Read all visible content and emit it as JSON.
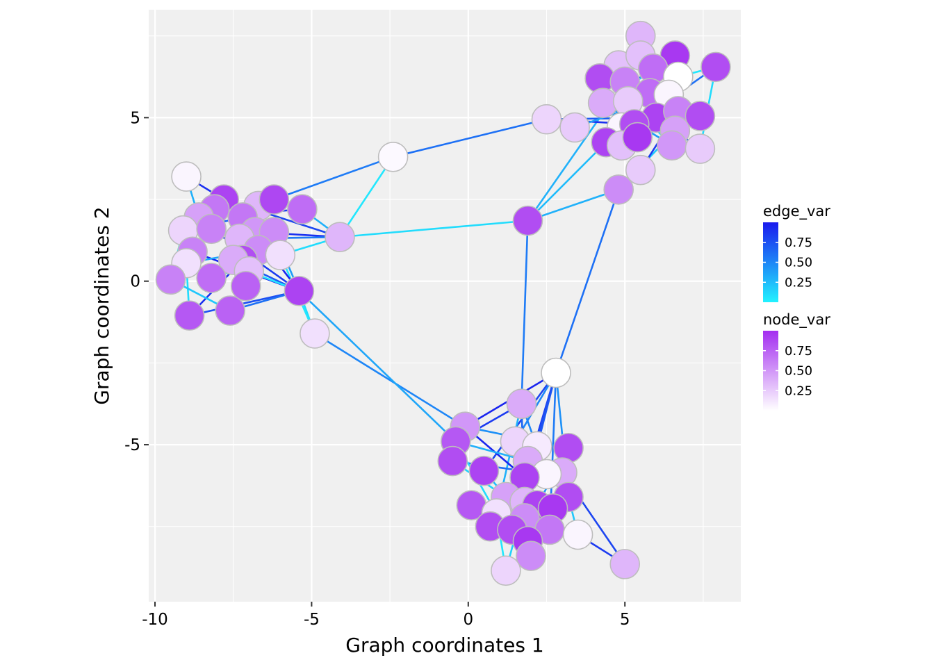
{
  "chart_data": {
    "type": "network",
    "xlabel": "Graph coordinates 1",
    "ylabel": "Graph coordinates 2",
    "xlim": [
      -10.2,
      8.7
    ],
    "ylim": [
      -9.8,
      8.3
    ],
    "x_ticks": [
      -10,
      -5,
      0,
      5
    ],
    "x_tick_labels": [
      "-10",
      "-5",
      "0",
      "5"
    ],
    "y_ticks": [
      -5,
      0,
      5
    ],
    "y_tick_labels": [
      "-5",
      "0",
      "5"
    ],
    "grid": true,
    "edge_color_low": "#22f2ff",
    "edge_color_high": "#1a1aee",
    "node_color_low": "#ffffff",
    "node_color_high": "#a32ef0",
    "node_stroke": "#bdbdbd",
    "legend": [
      {
        "title": "edge_var",
        "labels": [
          "0.75",
          "0.50",
          "0.25"
        ],
        "values": [
          0.75,
          0.5,
          0.25
        ]
      },
      {
        "title": "node_var",
        "labels": [
          "0.75",
          "0.50",
          "0.25"
        ],
        "values": [
          0.75,
          0.5,
          0.25
        ]
      }
    ],
    "nodes": [
      {
        "x": -9.0,
        "y": 3.2,
        "v": 0.05
      },
      {
        "x": -7.8,
        "y": 2.5,
        "v": 0.9
      },
      {
        "x": -6.7,
        "y": 2.3,
        "v": 0.35
      },
      {
        "x": -6.2,
        "y": 2.5,
        "v": 0.88
      },
      {
        "x": -5.3,
        "y": 2.2,
        "v": 0.7
      },
      {
        "x": -8.1,
        "y": 2.2,
        "v": 0.65
      },
      {
        "x": -8.6,
        "y": 1.95,
        "v": 0.45
      },
      {
        "x": -7.2,
        "y": 1.95,
        "v": 0.65
      },
      {
        "x": -9.1,
        "y": 1.55,
        "v": 0.2
      },
      {
        "x": -8.2,
        "y": 1.6,
        "v": 0.6
      },
      {
        "x": -6.8,
        "y": 1.5,
        "v": 0.5
      },
      {
        "x": -6.2,
        "y": 1.5,
        "v": 0.55
      },
      {
        "x": -4.1,
        "y": 1.35,
        "v": 0.35
      },
      {
        "x": -7.3,
        "y": 1.3,
        "v": 0.35
      },
      {
        "x": -8.8,
        "y": 0.9,
        "v": 0.6
      },
      {
        "x": -6.7,
        "y": 0.95,
        "v": 0.55
      },
      {
        "x": -6.0,
        "y": 0.8,
        "v": 0.15
      },
      {
        "x": -7.2,
        "y": 0.65,
        "v": 0.85
      },
      {
        "x": -7.5,
        "y": 0.65,
        "v": 0.4
      },
      {
        "x": -9.0,
        "y": 0.55,
        "v": 0.15
      },
      {
        "x": -7.0,
        "y": 0.3,
        "v": 0.3
      },
      {
        "x": -8.2,
        "y": 0.1,
        "v": 0.7
      },
      {
        "x": -9.5,
        "y": 0.05,
        "v": 0.6
      },
      {
        "x": -7.1,
        "y": -0.15,
        "v": 0.75
      },
      {
        "x": -5.4,
        "y": -0.3,
        "v": 0.9
      },
      {
        "x": -8.9,
        "y": -1.05,
        "v": 0.8
      },
      {
        "x": -7.6,
        "y": -0.9,
        "v": 0.75
      },
      {
        "x": -4.9,
        "y": -1.6,
        "v": 0.15
      },
      {
        "x": -2.4,
        "y": 3.8,
        "v": 0.03
      },
      {
        "x": 1.9,
        "y": 1.85,
        "v": 0.85
      },
      {
        "x": 5.5,
        "y": 7.5,
        "v": 0.35
      },
      {
        "x": 6.6,
        "y": 6.9,
        "v": 0.95
      },
      {
        "x": 4.8,
        "y": 6.6,
        "v": 0.3
      },
      {
        "x": 5.5,
        "y": 6.9,
        "v": 0.3
      },
      {
        "x": 5.9,
        "y": 6.5,
        "v": 0.7
      },
      {
        "x": 7.9,
        "y": 6.55,
        "v": 0.85
      },
      {
        "x": 6.7,
        "y": 6.25,
        "v": 0.0
      },
      {
        "x": 4.2,
        "y": 6.2,
        "v": 0.85
      },
      {
        "x": 5.0,
        "y": 6.1,
        "v": 0.6
      },
      {
        "x": 5.8,
        "y": 5.75,
        "v": 0.7
      },
      {
        "x": 6.4,
        "y": 5.7,
        "v": 0.05
      },
      {
        "x": 4.3,
        "y": 5.45,
        "v": 0.4
      },
      {
        "x": 5.1,
        "y": 5.5,
        "v": 0.25
      },
      {
        "x": 6.0,
        "y": 5.0,
        "v": 0.9
      },
      {
        "x": 6.7,
        "y": 5.2,
        "v": 0.6
      },
      {
        "x": 7.4,
        "y": 5.05,
        "v": 0.85
      },
      {
        "x": 2.5,
        "y": 4.95,
        "v": 0.2
      },
      {
        "x": 3.4,
        "y": 4.7,
        "v": 0.25
      },
      {
        "x": 4.9,
        "y": 4.7,
        "v": 0.05
      },
      {
        "x": 5.3,
        "y": 4.8,
        "v": 0.85
      },
      {
        "x": 6.6,
        "y": 4.6,
        "v": 0.45
      },
      {
        "x": 4.4,
        "y": 4.25,
        "v": 0.9
      },
      {
        "x": 4.9,
        "y": 4.15,
        "v": 0.3
      },
      {
        "x": 5.4,
        "y": 4.4,
        "v": 0.95
      },
      {
        "x": 6.5,
        "y": 4.15,
        "v": 0.5
      },
      {
        "x": 7.4,
        "y": 4.05,
        "v": 0.25
      },
      {
        "x": 5.5,
        "y": 3.4,
        "v": 0.25
      },
      {
        "x": 4.8,
        "y": 2.8,
        "v": 0.55
      },
      {
        "x": 2.8,
        "y": -2.8,
        "v": 0.0
      },
      {
        "x": 1.7,
        "y": -3.75,
        "v": 0.4
      },
      {
        "x": -0.1,
        "y": -4.45,
        "v": 0.5
      },
      {
        "x": -0.4,
        "y": -4.9,
        "v": 0.8
      },
      {
        "x": 1.5,
        "y": -4.9,
        "v": 0.2
      },
      {
        "x": 2.2,
        "y": -5.05,
        "v": 0.1
      },
      {
        "x": 3.2,
        "y": -5.1,
        "v": 0.85
      },
      {
        "x": -0.5,
        "y": -5.5,
        "v": 0.85
      },
      {
        "x": 1.9,
        "y": -5.5,
        "v": 0.4
      },
      {
        "x": 0.5,
        "y": -5.8,
        "v": 0.9
      },
      {
        "x": 3.0,
        "y": -5.85,
        "v": 0.4
      },
      {
        "x": 2.5,
        "y": -5.9,
        "v": 0.05
      },
      {
        "x": 1.8,
        "y": -6.0,
        "v": 0.9
      },
      {
        "x": 1.2,
        "y": -6.6,
        "v": 0.45
      },
      {
        "x": 3.2,
        "y": -6.6,
        "v": 0.85
      },
      {
        "x": 0.1,
        "y": -6.85,
        "v": 0.8
      },
      {
        "x": 1.8,
        "y": -6.75,
        "v": 0.35
      },
      {
        "x": 2.2,
        "y": -6.85,
        "v": 0.9
      },
      {
        "x": 2.7,
        "y": -6.95,
        "v": 0.95
      },
      {
        "x": 0.9,
        "y": -7.1,
        "v": 0.15
      },
      {
        "x": 1.8,
        "y": -7.25,
        "v": 0.55
      },
      {
        "x": 0.7,
        "y": -7.5,
        "v": 0.85
      },
      {
        "x": 1.4,
        "y": -7.6,
        "v": 0.85
      },
      {
        "x": 2.6,
        "y": -7.6,
        "v": 0.65
      },
      {
        "x": 3.5,
        "y": -7.75,
        "v": 0.05
      },
      {
        "x": 1.9,
        "y": -7.95,
        "v": 0.95
      },
      {
        "x": 2.0,
        "y": -8.4,
        "v": 0.55
      },
      {
        "x": 5.0,
        "y": -8.65,
        "v": 0.35
      },
      {
        "x": 1.2,
        "y": -8.85,
        "v": 0.2
      }
    ],
    "edges": [
      {
        "x1": -2.4,
        "y1": 3.8,
        "x2": 2.5,
        "y2": 4.95,
        "v": 0.6
      },
      {
        "x1": -2.4,
        "y1": 3.8,
        "x2": -6.2,
        "y2": 2.5,
        "v": 0.55
      },
      {
        "x1": -2.4,
        "y1": 3.8,
        "x2": -4.1,
        "y2": 1.35,
        "v": 0.05
      },
      {
        "x1": -4.1,
        "y1": 1.35,
        "x2": 1.9,
        "y2": 1.85,
        "v": 0.1
      },
      {
        "x1": 1.9,
        "y1": 1.85,
        "x2": 4.8,
        "y2": 2.8,
        "v": 0.3
      },
      {
        "x1": 1.9,
        "y1": 1.85,
        "x2": 4.4,
        "y2": 4.25,
        "v": 0.25
      },
      {
        "x1": 1.9,
        "y1": 1.85,
        "x2": 5.0,
        "y2": 6.1,
        "v": 0.3
      },
      {
        "x1": 1.9,
        "y1": 1.85,
        "x2": 1.7,
        "y2": -3.75,
        "v": 0.55
      },
      {
        "x1": 4.8,
        "y1": 2.8,
        "x2": 2.8,
        "y2": -2.8,
        "v": 0.6
      },
      {
        "x1": -4.9,
        "y1": -1.6,
        "x2": -0.1,
        "y2": -4.45,
        "v": 0.5
      },
      {
        "x1": -5.4,
        "y1": -0.3,
        "x2": -0.4,
        "y2": -4.9,
        "v": 0.35
      },
      {
        "x1": -5.4,
        "y1": -0.3,
        "x2": -4.9,
        "y2": -1.6,
        "v": 0.1
      },
      {
        "x1": -6.0,
        "y1": 0.8,
        "x2": -4.9,
        "y2": -1.6,
        "v": 0.05
      },
      {
        "x1": 2.5,
        "y1": 4.95,
        "x2": 6.0,
        "y2": 5.0,
        "v": 0.7
      },
      {
        "x1": 2.5,
        "y1": 4.95,
        "x2": 5.3,
        "y2": 4.8,
        "v": 0.9
      },
      {
        "x1": 3.4,
        "y1": 4.7,
        "x2": 6.4,
        "y2": 5.7,
        "v": 0.4
      },
      {
        "x1": 4.2,
        "y1": 6.2,
        "x2": 6.7,
        "y2": 6.25,
        "v": 0.8
      },
      {
        "x1": 4.3,
        "y1": 5.45,
        "x2": 6.6,
        "y2": 6.9,
        "v": 0.2
      },
      {
        "x1": 4.4,
        "y1": 4.25,
        "x2": 6.6,
        "y2": 6.9,
        "v": 0.9
      },
      {
        "x1": 5.3,
        "y1": 4.8,
        "x2": 7.9,
        "y2": 6.55,
        "v": 0.6
      },
      {
        "x1": 6.7,
        "y1": 6.25,
        "x2": 7.9,
        "y2": 6.55,
        "v": 0.05
      },
      {
        "x1": 7.9,
        "y1": 6.55,
        "x2": 7.4,
        "y2": 4.05,
        "v": 0.1
      },
      {
        "x1": 7.4,
        "y1": 4.05,
        "x2": 6.0,
        "y2": 5.0,
        "v": 0.7
      },
      {
        "x1": 4.8,
        "y1": 2.8,
        "x2": 6.6,
        "y2": 4.6,
        "v": 0.2
      },
      {
        "x1": 5.5,
        "y1": 3.4,
        "x2": 6.7,
        "y2": 5.2,
        "v": 0.85
      },
      {
        "x1": 4.9,
        "y1": 4.15,
        "x2": 6.0,
        "y2": 5.0,
        "v": 0.05
      },
      {
        "x1": 5.4,
        "y1": 4.4,
        "x2": 4.2,
        "y2": 6.2,
        "v": 0.3
      },
      {
        "x1": 5.0,
        "y1": 6.1,
        "x2": 5.5,
        "y2": 7.5,
        "v": 0.5
      },
      {
        "x1": 4.8,
        "y1": 6.6,
        "x2": 5.8,
        "y2": 5.75,
        "v": 0.95
      },
      {
        "x1": 6.5,
        "y1": 4.15,
        "x2": 5.1,
        "y2": 5.5,
        "v": 0.15
      },
      {
        "x1": 5.9,
        "y1": 6.5,
        "x2": 4.9,
        "y2": 4.7,
        "v": 0.75
      },
      {
        "x1": 4.3,
        "y1": 5.45,
        "x2": 6.5,
        "y2": 4.15,
        "v": 0.4
      },
      {
        "x1": 6.4,
        "y1": 5.7,
        "x2": 7.4,
        "y2": 5.05,
        "v": 0.6
      },
      {
        "x1": -9.0,
        "y1": 3.2,
        "x2": -7.8,
        "y2": 2.5,
        "v": 0.9
      },
      {
        "x1": -9.0,
        "y1": 3.2,
        "x2": -8.6,
        "y2": 1.95,
        "v": 0.3
      },
      {
        "x1": -7.8,
        "y1": 2.5,
        "x2": -4.1,
        "y2": 1.35,
        "v": 0.8
      },
      {
        "x1": -6.2,
        "y1": 2.5,
        "x2": -5.3,
        "y2": 2.2,
        "v": 0.6
      },
      {
        "x1": -8.6,
        "y1": 1.95,
        "x2": -5.3,
        "y2": 2.2,
        "v": 0.85
      },
      {
        "x1": -5.3,
        "y1": 2.2,
        "x2": -4.1,
        "y2": 1.35,
        "v": 0.3
      },
      {
        "x1": -6.8,
        "y1": 1.5,
        "x2": -4.1,
        "y2": 1.35,
        "v": 0.9
      },
      {
        "x1": -7.3,
        "y1": 1.3,
        "x2": -4.1,
        "y2": 1.35,
        "v": 0.55
      },
      {
        "x1": -6.0,
        "y1": 0.8,
        "x2": -4.1,
        "y2": 1.35,
        "v": 0.1
      },
      {
        "x1": -7.2,
        "y1": 1.95,
        "x2": -5.4,
        "y2": -0.3,
        "v": 0.95
      },
      {
        "x1": -8.2,
        "y1": 1.6,
        "x2": -5.4,
        "y2": -0.3,
        "v": 0.85
      },
      {
        "x1": -7.5,
        "y1": 0.65,
        "x2": -5.4,
        "y2": -0.3,
        "v": 0.7
      },
      {
        "x1": -8.8,
        "y1": 0.9,
        "x2": -5.4,
        "y2": -0.3,
        "v": 0.95
      },
      {
        "x1": -8.9,
        "y1": -1.05,
        "x2": -5.4,
        "y2": -0.3,
        "v": 0.75
      },
      {
        "x1": -7.6,
        "y1": -0.9,
        "x2": -5.4,
        "y2": -0.3,
        "v": 0.6
      },
      {
        "x1": -8.9,
        "y1": -1.05,
        "x2": -7.2,
        "y2": 0.65,
        "v": 0.9
      },
      {
        "x1": -8.9,
        "y1": -1.05,
        "x2": -9.0,
        "y2": 0.55,
        "v": 0.1
      },
      {
        "x1": -7.6,
        "y1": -0.9,
        "x2": -9.5,
        "y2": 0.05,
        "v": 0.2
      },
      {
        "x1": -9.5,
        "y1": 0.05,
        "x2": -9.1,
        "y2": 1.55,
        "v": 0.05
      },
      {
        "x1": -9.0,
        "y1": 0.55,
        "x2": -6.7,
        "y2": 0.95,
        "v": 0.35
      },
      {
        "x1": -8.2,
        "y1": 0.1,
        "x2": -6.0,
        "y2": 0.8,
        "v": 0.15
      },
      {
        "x1": -7.0,
        "y1": 0.3,
        "x2": -5.4,
        "y2": -0.3,
        "v": 0.05
      },
      {
        "x1": -9.1,
        "y1": 1.55,
        "x2": -7.2,
        "y2": 1.95,
        "v": 0.65
      },
      {
        "x1": -8.6,
        "y1": 1.95,
        "x2": -9.0,
        "y2": 0.55,
        "v": 0.25
      },
      {
        "x1": -6.2,
        "y1": 1.5,
        "x2": -5.4,
        "y2": -0.3,
        "v": 0.4
      },
      {
        "x1": 2.8,
        "y1": -2.8,
        "x2": -0.1,
        "y2": -4.45,
        "v": 0.95
      },
      {
        "x1": 2.8,
        "y1": -2.8,
        "x2": 0.5,
        "y2": -5.8,
        "v": 0.8
      },
      {
        "x1": 2.8,
        "y1": -2.8,
        "x2": 1.5,
        "y2": -4.9,
        "v": 0.5
      },
      {
        "x1": 2.8,
        "y1": -2.8,
        "x2": 2.2,
        "y2": -5.05,
        "v": 0.7
      },
      {
        "x1": 2.8,
        "y1": -2.8,
        "x2": 1.8,
        "y2": -6.0,
        "v": 0.85
      },
      {
        "x1": 2.8,
        "y1": -2.8,
        "x2": 2.6,
        "y2": -7.6,
        "v": 0.55
      },
      {
        "x1": 2.8,
        "y1": -2.8,
        "x2": 3.2,
        "y2": -6.6,
        "v": 0.45
      },
      {
        "x1": 2.8,
        "y1": -2.8,
        "x2": 1.4,
        "y2": -7.6,
        "v": 0.75
      },
      {
        "x1": 1.7,
        "y1": -3.75,
        "x2": -0.4,
        "y2": -4.9,
        "v": 0.85
      },
      {
        "x1": 1.7,
        "y1": -3.75,
        "x2": 2.5,
        "y2": -5.9,
        "v": 0.5
      },
      {
        "x1": 1.7,
        "y1": -3.75,
        "x2": 1.8,
        "y2": -7.25,
        "v": 0.65
      },
      {
        "x1": 1.7,
        "y1": -3.75,
        "x2": 0.9,
        "y2": -7.1,
        "v": 0.3
      },
      {
        "x1": -0.1,
        "y1": -4.45,
        "x2": 3.2,
        "y2": -5.1,
        "v": 0.45
      },
      {
        "x1": -0.1,
        "y1": -4.45,
        "x2": 1.8,
        "y2": -6.0,
        "v": 0.95
      },
      {
        "x1": -0.4,
        "y1": -4.9,
        "x2": 1.9,
        "y2": -5.5,
        "v": 0.3
      },
      {
        "x1": -0.5,
        "y1": -5.5,
        "x2": 2.5,
        "y2": -5.9,
        "v": 0.6
      },
      {
        "x1": -0.5,
        "y1": -5.5,
        "x2": 1.2,
        "y2": -6.6,
        "v": 0.15
      },
      {
        "x1": -0.4,
        "y1": -4.9,
        "x2": 0.9,
        "y2": -7.1,
        "v": 0.1
      },
      {
        "x1": 0.1,
        "y1": -6.85,
        "x2": 2.2,
        "y2": -6.85,
        "v": 0.9
      },
      {
        "x1": 0.5,
        "y1": -5.8,
        "x2": 1.8,
        "y2": -7.25,
        "v": 0.25
      },
      {
        "x1": 0.7,
        "y1": -7.5,
        "x2": 2.7,
        "y2": -6.95,
        "v": 0.8
      },
      {
        "x1": 1.2,
        "y1": -8.85,
        "x2": 1.8,
        "y2": -6.75,
        "v": 0.15
      },
      {
        "x1": 1.2,
        "y1": -8.85,
        "x2": 0.9,
        "y2": -7.1,
        "v": 0.05
      },
      {
        "x1": 2.0,
        "y1": -8.4,
        "x2": 2.6,
        "y2": -7.6,
        "v": 0.45
      },
      {
        "x1": 3.2,
        "y1": -6.6,
        "x2": 3.5,
        "y2": -7.75,
        "v": 0.2
      },
      {
        "x1": 3.0,
        "y1": -5.85,
        "x2": 5.0,
        "y2": -8.65,
        "v": 0.8
      },
      {
        "x1": 3.5,
        "y1": -7.75,
        "x2": 5.0,
        "y2": -8.65,
        "v": 0.85
      },
      {
        "x1": 1.4,
        "y1": -7.6,
        "x2": 3.2,
        "y2": -6.6,
        "v": 0.55
      },
      {
        "x1": 1.9,
        "y1": -7.95,
        "x2": 0.1,
        "y2": -6.85,
        "v": 0.65
      },
      {
        "x1": 2.2,
        "y1": -6.85,
        "x2": 3.2,
        "y2": -5.1,
        "v": 0.4
      }
    ]
  }
}
